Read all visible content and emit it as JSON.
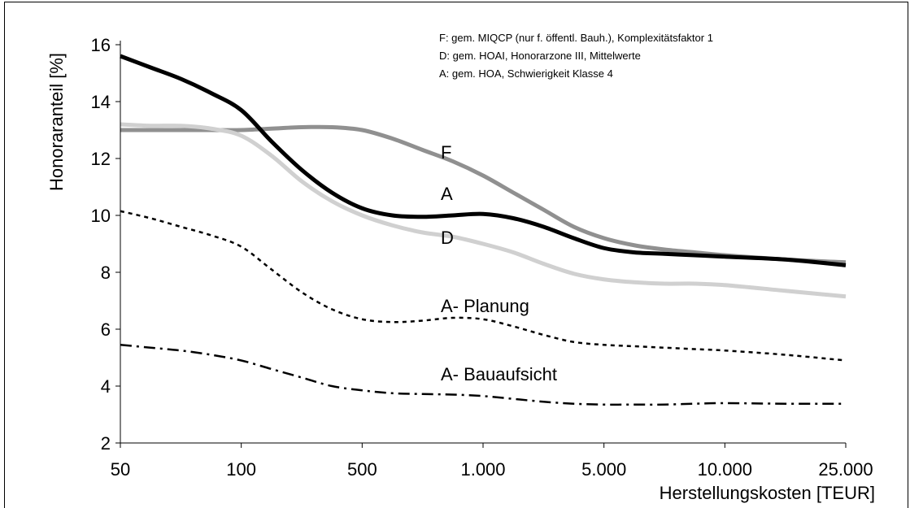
{
  "chart_data": {
    "type": "line",
    "xlabel": "Herstellungskosten [TEUR]",
    "ylabel": "Honoraranteil [%]",
    "categories": [
      "50",
      "100",
      "500",
      "1.000",
      "5.000",
      "10.000",
      "25.000"
    ],
    "ylim": [
      2,
      16
    ],
    "yticks": [
      2,
      4,
      6,
      8,
      10,
      12,
      14,
      16
    ],
    "grid": false,
    "legend_notes": [
      "F: gem. MIQCP (nur f. öffentl. Bauh.), Komplexitätsfaktor 1",
      "D: gem. HOAI, Honorarzone III, Mittelwerte",
      "A: gem. HOA, Schwierigkeit Klasse 4"
    ],
    "series": [
      {
        "name": "F",
        "color": "#909090",
        "style": "solid",
        "points": [
          [
            0,
            13.0
          ],
          [
            0.25,
            13.0
          ],
          [
            0.5,
            13.0
          ],
          [
            0.75,
            13.0
          ],
          [
            1,
            13.0
          ],
          [
            1.25,
            13.05
          ],
          [
            1.5,
            13.1
          ],
          [
            1.75,
            13.1
          ],
          [
            2,
            13.0
          ],
          [
            2.25,
            12.7
          ],
          [
            2.5,
            12.3
          ],
          [
            2.75,
            11.9
          ],
          [
            3,
            11.4
          ],
          [
            3.25,
            10.8
          ],
          [
            3.5,
            10.2
          ],
          [
            3.75,
            9.6
          ],
          [
            4,
            9.2
          ],
          [
            4.25,
            8.95
          ],
          [
            4.5,
            8.8
          ],
          [
            4.75,
            8.7
          ],
          [
            5,
            8.6
          ],
          [
            5.5,
            8.45
          ],
          [
            6,
            8.35
          ]
        ]
      },
      {
        "name": "A",
        "color": "#000000",
        "style": "solid",
        "points": [
          [
            0,
            15.6
          ],
          [
            0.25,
            15.2
          ],
          [
            0.5,
            14.8
          ],
          [
            0.75,
            14.3
          ],
          [
            1,
            13.7
          ],
          [
            1.25,
            12.6
          ],
          [
            1.5,
            11.6
          ],
          [
            1.75,
            10.8
          ],
          [
            2,
            10.25
          ],
          [
            2.25,
            10.0
          ],
          [
            2.5,
            9.95
          ],
          [
            2.75,
            10.0
          ],
          [
            3,
            10.05
          ],
          [
            3.25,
            9.9
          ],
          [
            3.5,
            9.6
          ],
          [
            3.75,
            9.2
          ],
          [
            4,
            8.85
          ],
          [
            4.25,
            8.7
          ],
          [
            4.5,
            8.65
          ],
          [
            4.75,
            8.6
          ],
          [
            5,
            8.55
          ],
          [
            5.5,
            8.45
          ],
          [
            6,
            8.25
          ]
        ]
      },
      {
        "name": "D",
        "color": "#d0d0d0",
        "style": "solid",
        "points": [
          [
            0,
            13.2
          ],
          [
            0.25,
            13.15
          ],
          [
            0.5,
            13.15
          ],
          [
            0.75,
            13.05
          ],
          [
            1,
            12.8
          ],
          [
            1.25,
            12.1
          ],
          [
            1.5,
            11.2
          ],
          [
            1.75,
            10.5
          ],
          [
            2,
            10.0
          ],
          [
            2.25,
            9.65
          ],
          [
            2.5,
            9.4
          ],
          [
            2.75,
            9.25
          ],
          [
            3,
            9.0
          ],
          [
            3.25,
            8.7
          ],
          [
            3.5,
            8.3
          ],
          [
            3.75,
            7.95
          ],
          [
            4,
            7.75
          ],
          [
            4.25,
            7.65
          ],
          [
            4.5,
            7.6
          ],
          [
            4.75,
            7.6
          ],
          [
            5,
            7.55
          ],
          [
            5.5,
            7.35
          ],
          [
            6,
            7.15
          ]
        ]
      },
      {
        "name": "A- Planung",
        "color": "#000000",
        "style": "dotted",
        "points": [
          [
            0,
            10.15
          ],
          [
            0.25,
            9.9
          ],
          [
            0.5,
            9.6
          ],
          [
            0.75,
            9.3
          ],
          [
            1,
            8.9
          ],
          [
            1.25,
            8.1
          ],
          [
            1.5,
            7.3
          ],
          [
            1.75,
            6.7
          ],
          [
            2,
            6.35
          ],
          [
            2.25,
            6.25
          ],
          [
            2.5,
            6.3
          ],
          [
            2.75,
            6.4
          ],
          [
            3,
            6.35
          ],
          [
            3.25,
            6.1
          ],
          [
            3.5,
            5.8
          ],
          [
            3.75,
            5.55
          ],
          [
            4,
            5.45
          ],
          [
            4.25,
            5.4
          ],
          [
            4.5,
            5.35
          ],
          [
            4.75,
            5.3
          ],
          [
            5,
            5.25
          ],
          [
            5.5,
            5.1
          ],
          [
            6,
            4.9
          ]
        ]
      },
      {
        "name": "A- Bauaufsicht",
        "color": "#000000",
        "style": "dashdot",
        "points": [
          [
            0,
            5.45
          ],
          [
            0.25,
            5.35
          ],
          [
            0.5,
            5.25
          ],
          [
            0.75,
            5.1
          ],
          [
            1,
            4.9
          ],
          [
            1.25,
            4.6
          ],
          [
            1.5,
            4.3
          ],
          [
            1.75,
            4.0
          ],
          [
            2,
            3.85
          ],
          [
            2.25,
            3.75
          ],
          [
            2.5,
            3.72
          ],
          [
            2.75,
            3.7
          ],
          [
            3,
            3.65
          ],
          [
            3.25,
            3.55
          ],
          [
            3.5,
            3.45
          ],
          [
            3.75,
            3.38
          ],
          [
            4,
            3.35
          ],
          [
            4.25,
            3.35
          ],
          [
            4.5,
            3.35
          ],
          [
            4.75,
            3.38
          ],
          [
            5,
            3.4
          ],
          [
            5.5,
            3.38
          ],
          [
            6,
            3.38
          ]
        ]
      }
    ],
    "annotations": [
      {
        "text": "F",
        "x": 2.65,
        "y": 12.0
      },
      {
        "text": "A",
        "x": 2.65,
        "y": 10.55
      },
      {
        "text": "D",
        "x": 2.65,
        "y": 9.0
      },
      {
        "text": "A- Planung",
        "x": 2.65,
        "y": 6.6
      },
      {
        "text": "A- Bauaufsicht",
        "x": 2.65,
        "y": 4.2
      }
    ]
  }
}
